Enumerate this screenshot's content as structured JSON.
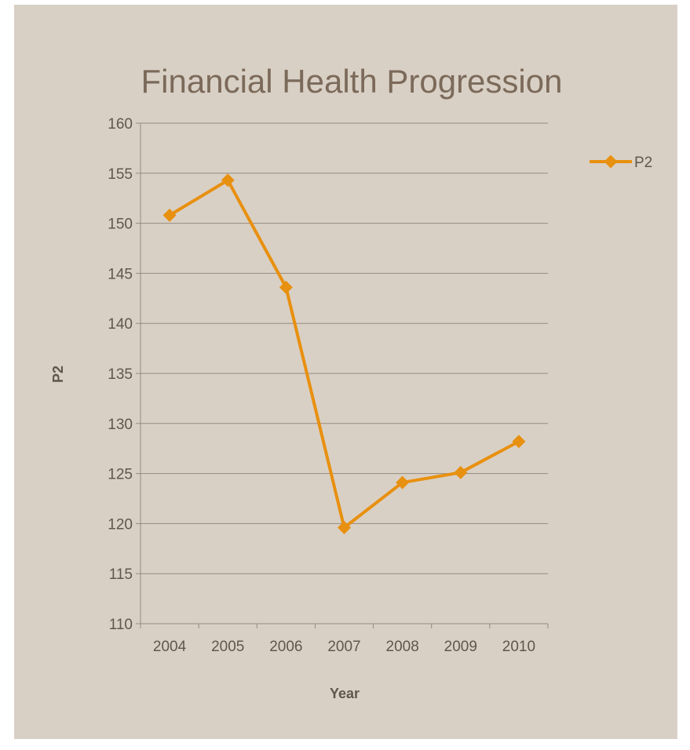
{
  "chart_data": {
    "type": "line",
    "title": "Financial Health Progression",
    "xlabel": "Year",
    "ylabel": "P2",
    "categories": [
      "2004",
      "2005",
      "2006",
      "2007",
      "2008",
      "2009",
      "2010"
    ],
    "series": [
      {
        "name": "P2",
        "values": [
          150.8,
          154.3,
          143.6,
          119.6,
          124.1,
          125.1,
          128.2
        ],
        "color": "#e8900f"
      }
    ],
    "ylim": [
      110,
      160
    ],
    "yticks": [
      "110",
      "115",
      "120",
      "125",
      "130",
      "135",
      "140",
      "145",
      "150",
      "155",
      "160"
    ],
    "grid": true,
    "legend": "right",
    "colors": {
      "background": "#d9d0c5",
      "gridline": "#958a7e",
      "text": "#5f564d",
      "title": "#7b6a5a"
    }
  }
}
